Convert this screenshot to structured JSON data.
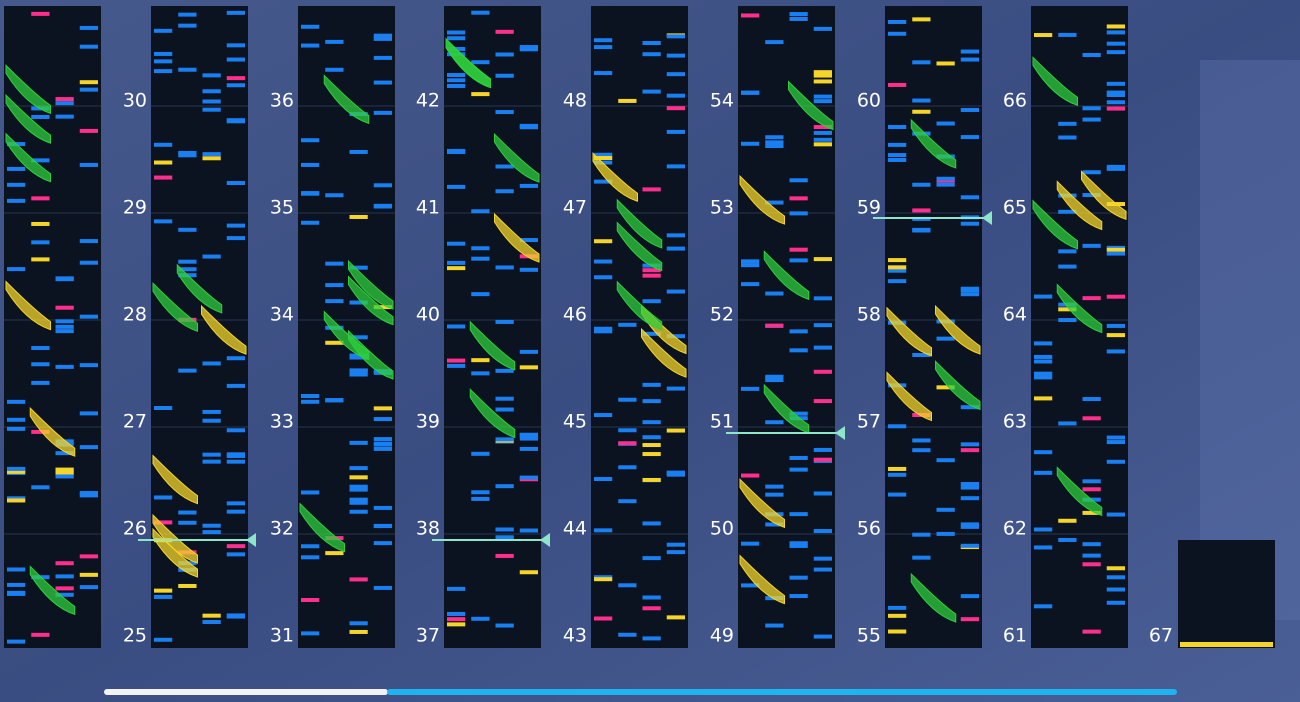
{
  "measures": [
    25,
    26,
    27,
    28,
    29,
    30,
    31,
    32,
    33,
    34,
    35,
    36,
    37,
    38,
    39,
    40,
    41,
    42,
    43,
    44,
    45,
    46,
    47,
    48,
    49,
    50,
    51,
    52,
    53,
    54,
    55,
    56,
    57,
    58,
    59,
    60,
    61,
    62,
    63,
    64,
    65,
    66,
    67
  ]
}
